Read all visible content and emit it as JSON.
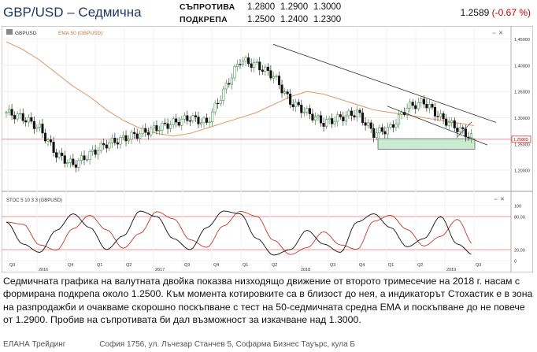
{
  "header": {
    "title": "GBP/USD – Седмична",
    "resistance_label": "СЪПРОТИВА",
    "resistance_values": [
      "1.2800",
      "1.2900",
      "1.3000"
    ],
    "support_label": "ПОДКРЕПА",
    "support_values": [
      "1.2500",
      "1.2400",
      "1.2300"
    ],
    "last_price": "1.2589",
    "change": "(-0.67 %)"
  },
  "chart": {
    "symbol_tag": "GBPUSD",
    "ema_legend": "EMA 50 (GBPUSD)",
    "stoch_legend": "STOC 5 10 3 3 (GBPUSD)",
    "price_badge": "1.25865",
    "price_axis": [
      "1,45000",
      "1,40000",
      "1,35000",
      "1,30000",
      "1,25000",
      "1,20000"
    ],
    "stoch_axis": [
      "100",
      "80,00",
      "20,00",
      "0"
    ],
    "time_axis": [
      "Q3",
      "2016",
      "Q4",
      "Q1",
      "Q2",
      "2017",
      "Q3",
      "Q4",
      "Q1",
      "Q2",
      "2018",
      "Q3",
      "Q4",
      "Q1",
      "Q2",
      "2019",
      "Q3"
    ],
    "accent_up": "#2e7d32",
    "accent_down": "#111111",
    "ema_color": "#e0a070",
    "support_zone_color": "#c9ecd0"
  },
  "chart_data": {
    "type": "candlestick",
    "title": "GBPUSD",
    "series": [
      {
        "name": "EMA 50 (GBPUSD)",
        "values": [
          1.445,
          1.43,
          1.41,
          1.385,
          1.36,
          1.34,
          1.315,
          1.295,
          1.28,
          1.27,
          1.265,
          1.27,
          1.28,
          1.29,
          1.3,
          1.31,
          1.325,
          1.34,
          1.35,
          1.345,
          1.335,
          1.325,
          1.315,
          1.31,
          1.305,
          1.3,
          1.295,
          1.29,
          1.285
        ]
      },
      {
        "name": "GBPUSD close",
        "values": [
          1.31,
          1.3,
          1.28,
          1.23,
          1.21,
          1.23,
          1.25,
          1.26,
          1.27,
          1.28,
          1.29,
          1.3,
          1.29,
          1.35,
          1.41,
          1.4,
          1.38,
          1.33,
          1.31,
          1.29,
          1.3,
          1.31,
          1.27,
          1.28,
          1.32,
          1.33,
          1.3,
          1.28,
          1.2589
        ]
      },
      {
        "name": "STOC 5 10 3 3",
        "values": [
          70,
          30,
          15,
          55,
          85,
          60,
          20,
          45,
          90,
          80,
          40,
          20,
          60,
          90,
          85,
          40,
          10,
          20,
          55,
          30,
          15,
          70,
          85,
          60,
          25,
          40,
          80,
          30,
          10
        ]
      }
    ],
    "ylim_price": [
      1.17,
      1.46
    ],
    "ylim_stoch": [
      0,
      100
    ],
    "support_zone": [
      1.24,
      1.26
    ],
    "last_close": 1.2589
  },
  "comment": "Седмичната графика на валутната двойка показва низходящо движение от второто тримесечие на 2018 г. насам с формирана подкрепа около 1.2500. Към момента котировките са в близост до нея, а индикаторът Стохастик е в зона на разпродажби и очакваме скорошно поскъпване с тест на 50-седмичната средна ЕМА и поскъпване до не повече от 1.2900. Пробив на съпротивата би дал възможност за изкачване над 1.3000.",
  "footer": {
    "company": "ЕЛАНА Трейдинг",
    "address": "София 1756, ул. Лъчезар Станчев 5, Софарма Бизнес Тауърс, кула Б"
  }
}
